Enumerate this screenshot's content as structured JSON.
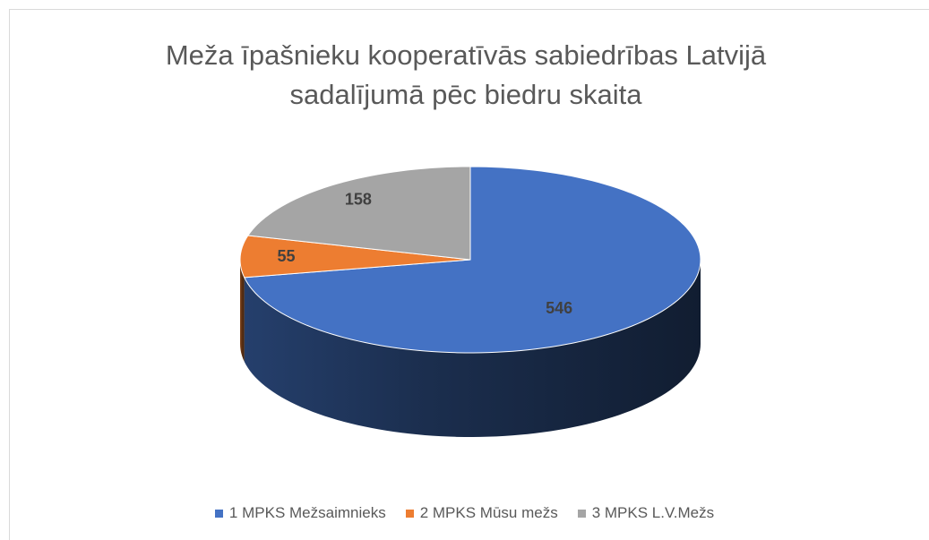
{
  "chart_data": {
    "type": "pie3d",
    "title": "Meža īpašnieku kooperatīvās sabiedrības Latvijā sadalījumā pēc biedru skaita",
    "categories": [
      "1 MPKS Mežsaimnieks",
      "2 MPKS Mūsu mežs",
      "3 MPKS L.V.Mežs"
    ],
    "values": [
      546,
      55,
      158
    ],
    "colors": [
      "#4472c4",
      "#ed7d31",
      "#a5a5a5"
    ],
    "legend": "bottom"
  }
}
